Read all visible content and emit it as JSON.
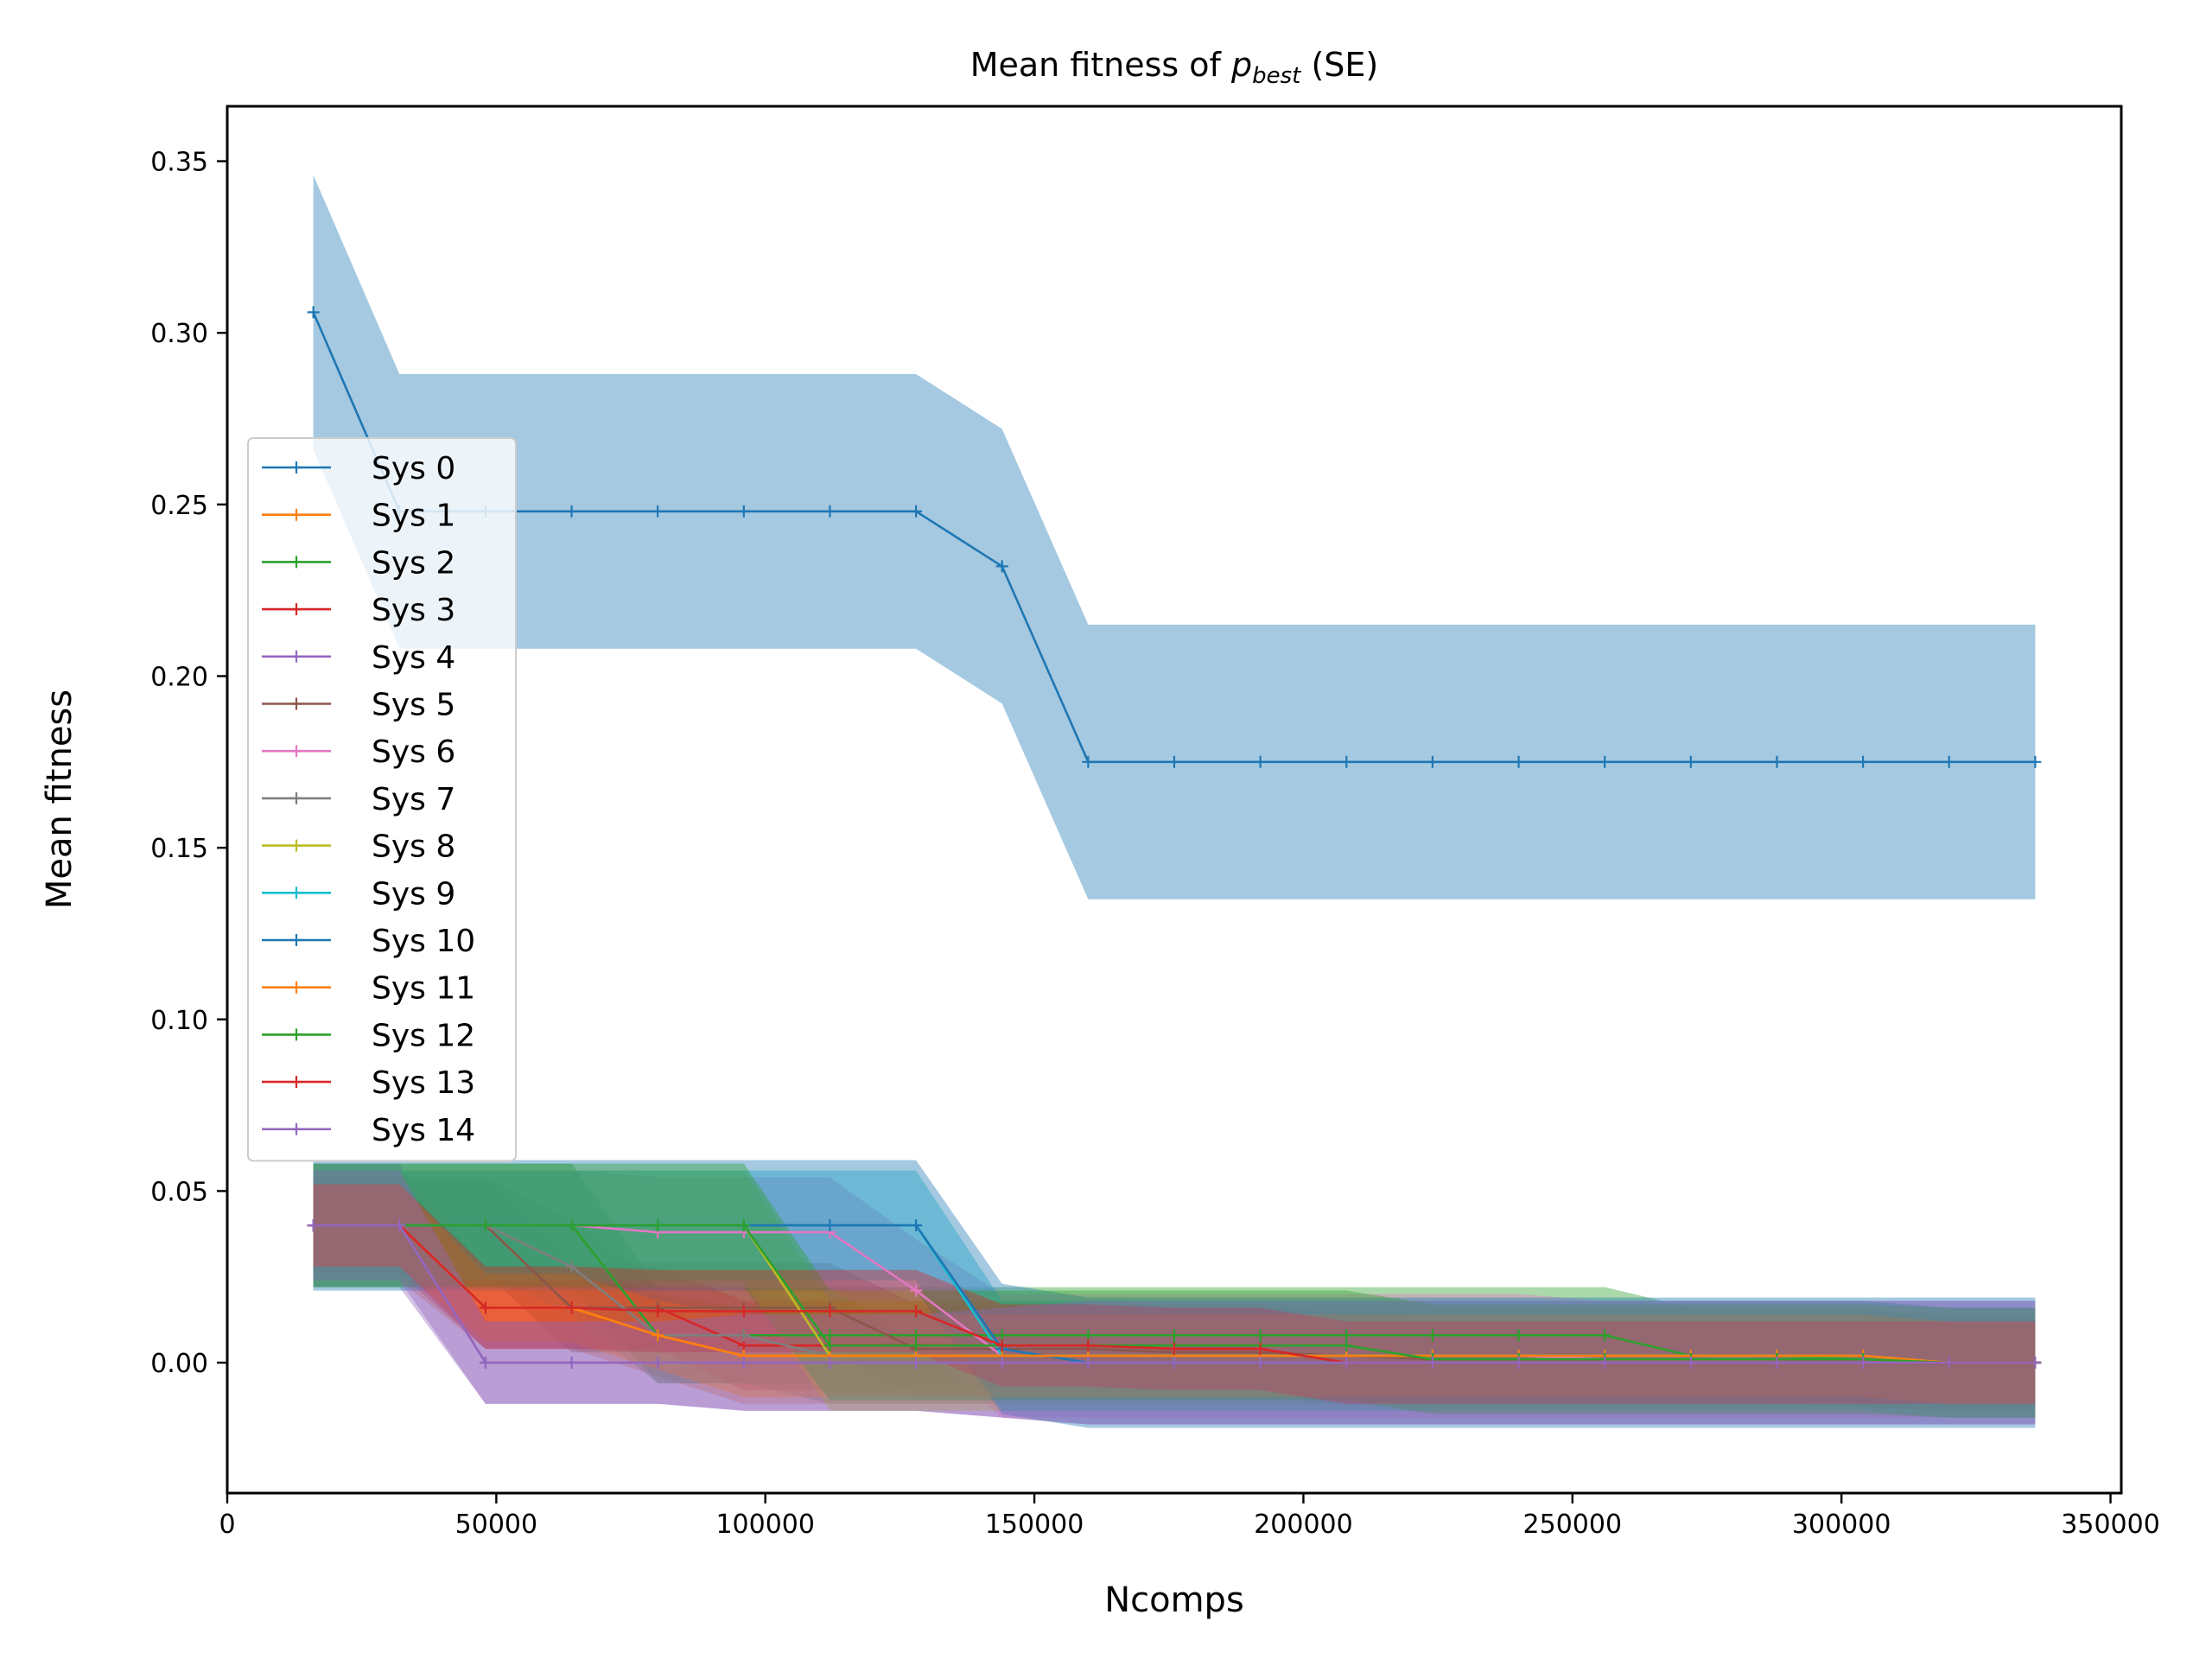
{
  "chart_data": {
    "type": "line",
    "title_prefix": "Mean fitness of ",
    "title_var": "p",
    "title_sub": "best",
    "title_suffix": " (SE)",
    "xlabel": "Ncomps",
    "ylabel": "Mean fitness",
    "xlim": [
      0,
      352000
    ],
    "ylim": [
      -0.038,
      0.366
    ],
    "xticks": [
      0,
      50000,
      100000,
      150000,
      200000,
      250000,
      300000,
      350000
    ],
    "yticks": [
      0.0,
      0.05,
      0.1,
      0.15,
      0.2,
      0.25,
      0.3,
      0.35
    ],
    "ytick_labels": [
      "0.00",
      "0.05",
      "0.10",
      "0.15",
      "0.20",
      "0.25",
      "0.30",
      "0.35"
    ],
    "grid": false,
    "legend_position": "center-left",
    "x": [
      16000,
      32000,
      48000,
      64000,
      80000,
      96000,
      112000,
      128000,
      144000,
      160000,
      176000,
      192000,
      208000,
      224000,
      240000,
      256000,
      272000,
      288000,
      304000,
      320000,
      336000
    ],
    "series": [
      {
        "name": "Sys 0",
        "color": "#1f77b4",
        "values": [
          0.306,
          0.248,
          0.248,
          0.248,
          0.248,
          0.248,
          0.248,
          0.248,
          0.232,
          0.175,
          0.175,
          0.175,
          0.175,
          0.175,
          0.175,
          0.175,
          0.175,
          0.175,
          0.175,
          0.175,
          0.175
        ],
        "lower": [
          0.266,
          0.208,
          0.208,
          0.208,
          0.208,
          0.208,
          0.208,
          0.208,
          0.192,
          0.135,
          0.135,
          0.135,
          0.135,
          0.135,
          0.135,
          0.135,
          0.135,
          0.135,
          0.135,
          0.135,
          0.135
        ],
        "upper": [
          0.346,
          0.288,
          0.288,
          0.288,
          0.288,
          0.288,
          0.288,
          0.288,
          0.272,
          0.215,
          0.215,
          0.215,
          0.215,
          0.215,
          0.215,
          0.215,
          0.215,
          0.215,
          0.215,
          0.215,
          0.215
        ]
      },
      {
        "name": "Sys 1",
        "color": "#ff7f0e",
        "values": [
          0.04,
          0.04,
          0.016,
          0.016,
          0.008,
          0.002,
          0.002,
          0.002,
          0.002,
          0.002,
          0.002,
          0.002,
          0.002,
          0.002,
          0.002,
          0.002,
          0.002,
          0.002,
          0.002,
          0.0,
          0.0
        ],
        "lower": [
          0.024,
          0.024,
          0.004,
          0.004,
          -0.004,
          -0.012,
          -0.012,
          -0.012,
          -0.012,
          -0.012,
          -0.012,
          -0.012,
          -0.012,
          -0.012,
          -0.012,
          -0.012,
          -0.012,
          -0.012,
          -0.012,
          -0.014,
          -0.014
        ],
        "upper": [
          0.056,
          0.056,
          0.028,
          0.028,
          0.02,
          0.016,
          0.016,
          0.016,
          0.016,
          0.016,
          0.016,
          0.016,
          0.016,
          0.016,
          0.016,
          0.016,
          0.016,
          0.016,
          0.016,
          0.014,
          0.014
        ]
      },
      {
        "name": "Sys 2",
        "color": "#2ca02c",
        "values": [
          0.04,
          0.04,
          0.04,
          0.04,
          0.008,
          0.008,
          0.008,
          0.008,
          0.008,
          0.008,
          0.008,
          0.008,
          0.008,
          0.008,
          0.008,
          0.008,
          0.002,
          0.002,
          0.001,
          0.0,
          0.0
        ],
        "lower": [
          0.022,
          0.022,
          0.022,
          0.022,
          -0.006,
          -0.006,
          -0.006,
          -0.006,
          -0.006,
          -0.006,
          -0.006,
          -0.006,
          -0.006,
          -0.006,
          -0.006,
          -0.006,
          -0.012,
          -0.012,
          -0.013,
          -0.014,
          -0.014
        ],
        "upper": [
          0.058,
          0.058,
          0.058,
          0.058,
          0.022,
          0.022,
          0.022,
          0.022,
          0.022,
          0.022,
          0.022,
          0.022,
          0.022,
          0.022,
          0.022,
          0.022,
          0.016,
          0.016,
          0.015,
          0.014,
          0.014
        ]
      },
      {
        "name": "Sys 3",
        "color": "#d62728",
        "values": [
          0.04,
          0.04,
          0.016,
          0.016,
          0.016,
          0.005,
          0.005,
          0.005,
          0.005,
          0.005,
          0.004,
          0.004,
          0.0,
          0.0,
          0.0,
          0.0,
          0.0,
          0.0,
          0.0,
          0.0,
          0.0
        ],
        "lower": [
          0.026,
          0.026,
          0.004,
          0.004,
          0.004,
          -0.008,
          -0.008,
          -0.008,
          -0.008,
          -0.008,
          -0.009,
          -0.009,
          -0.013,
          -0.013,
          -0.013,
          -0.013,
          -0.013,
          -0.013,
          -0.013,
          -0.013,
          -0.013
        ],
        "upper": [
          0.054,
          0.054,
          0.028,
          0.028,
          0.028,
          0.018,
          0.018,
          0.018,
          0.018,
          0.018,
          0.017,
          0.017,
          0.013,
          0.013,
          0.013,
          0.013,
          0.013,
          0.013,
          0.013,
          0.013,
          0.013
        ]
      },
      {
        "name": "Sys 4",
        "color": "#9467bd",
        "values": [
          0.04,
          0.04,
          0.0,
          0.0,
          0.0,
          0.0,
          0.0,
          0.0,
          0.0,
          0.0,
          0.0,
          0.0,
          0.0,
          0.0,
          0.0,
          0.0,
          0.0,
          0.0,
          0.0,
          0.0,
          0.0
        ],
        "lower": [
          0.022,
          0.022,
          -0.012,
          -0.012,
          -0.012,
          -0.014,
          -0.014,
          -0.014,
          -0.016,
          -0.018,
          -0.018,
          -0.018,
          -0.018,
          -0.018,
          -0.018,
          -0.018,
          -0.018,
          -0.018,
          -0.018,
          -0.018,
          -0.018
        ],
        "upper": [
          0.058,
          0.058,
          0.012,
          0.012,
          0.012,
          0.014,
          0.014,
          0.014,
          0.016,
          0.018,
          0.018,
          0.018,
          0.018,
          0.018,
          0.018,
          0.018,
          0.018,
          0.018,
          0.018,
          0.018,
          0.018
        ]
      },
      {
        "name": "Sys 5",
        "color": "#8c564b",
        "values": [
          0.04,
          0.04,
          0.04,
          0.016,
          0.016,
          0.016,
          0.016,
          0.004,
          0.004,
          0.004,
          0.003,
          0.003,
          0.002,
          0.001,
          0.001,
          0.001,
          0.001,
          0.001,
          0.001,
          0.0,
          0.0
        ],
        "lower": [
          0.026,
          0.026,
          0.026,
          0.003,
          0.003,
          0.003,
          0.003,
          -0.009,
          -0.009,
          -0.009,
          -0.01,
          -0.01,
          -0.011,
          -0.012,
          -0.012,
          -0.012,
          -0.012,
          -0.012,
          -0.012,
          -0.013,
          -0.013
        ],
        "upper": [
          0.054,
          0.054,
          0.054,
          0.029,
          0.029,
          0.029,
          0.029,
          0.017,
          0.017,
          0.017,
          0.016,
          0.016,
          0.015,
          0.014,
          0.014,
          0.014,
          0.014,
          0.014,
          0.014,
          0.013,
          0.013
        ]
      },
      {
        "name": "Sys 6",
        "color": "#e377c2",
        "values": [
          0.04,
          0.04,
          0.04,
          0.04,
          0.038,
          0.038,
          0.038,
          0.021,
          0.002,
          0.002,
          0.002,
          0.002,
          0.002,
          0.002,
          0.002,
          0.001,
          0.001,
          0.001,
          0.001,
          0.0,
          0.0
        ],
        "lower": [
          0.024,
          0.024,
          0.024,
          0.024,
          0.022,
          0.022,
          0.022,
          0.006,
          -0.016,
          -0.016,
          -0.016,
          -0.016,
          -0.016,
          -0.016,
          -0.016,
          -0.016,
          -0.016,
          -0.016,
          -0.016,
          -0.016,
          -0.016
        ],
        "upper": [
          0.056,
          0.056,
          0.056,
          0.056,
          0.054,
          0.054,
          0.054,
          0.036,
          0.02,
          0.02,
          0.02,
          0.02,
          0.02,
          0.02,
          0.02,
          0.018,
          0.018,
          0.018,
          0.018,
          0.016,
          0.016
        ]
      },
      {
        "name": "Sys 7",
        "color": "#7f7f7f",
        "values": [
          0.04,
          0.04,
          0.04,
          0.028,
          0.008,
          0.008,
          0.002,
          0.002,
          0.002,
          0.002,
          0.002,
          0.002,
          0.002,
          0.002,
          0.002,
          0.002,
          0.002,
          0.001,
          0.001,
          0.0,
          0.0
        ],
        "lower": [
          0.026,
          0.026,
          0.026,
          0.014,
          -0.006,
          -0.006,
          -0.012,
          -0.012,
          -0.012,
          -0.012,
          -0.012,
          -0.012,
          -0.012,
          -0.012,
          -0.012,
          -0.012,
          -0.012,
          -0.013,
          -0.013,
          -0.014,
          -0.014
        ],
        "upper": [
          0.054,
          0.054,
          0.054,
          0.042,
          0.022,
          0.022,
          0.016,
          0.016,
          0.016,
          0.016,
          0.016,
          0.016,
          0.016,
          0.016,
          0.016,
          0.016,
          0.016,
          0.015,
          0.015,
          0.014,
          0.014
        ]
      },
      {
        "name": "Sys 8",
        "color": "#bcbd22",
        "values": [
          0.04,
          0.04,
          0.04,
          0.04,
          0.04,
          0.04,
          0.002,
          0.002,
          0.002,
          0.002,
          0.002,
          0.002,
          0.002,
          0.002,
          0.002,
          0.002,
          0.002,
          0.002,
          0.002,
          0.0,
          0.0
        ],
        "lower": [
          0.024,
          0.024,
          0.024,
          0.024,
          0.024,
          0.024,
          -0.014,
          -0.014,
          -0.014,
          -0.014,
          -0.014,
          -0.014,
          -0.014,
          -0.014,
          -0.014,
          -0.014,
          -0.014,
          -0.014,
          -0.014,
          -0.016,
          -0.016
        ],
        "upper": [
          0.056,
          0.056,
          0.056,
          0.056,
          0.056,
          0.056,
          0.018,
          0.018,
          0.018,
          0.018,
          0.018,
          0.018,
          0.018,
          0.018,
          0.018,
          0.018,
          0.018,
          0.018,
          0.018,
          0.016,
          0.016
        ]
      },
      {
        "name": "Sys 9",
        "color": "#17becf",
        "values": [
          0.04,
          0.04,
          0.04,
          0.04,
          0.04,
          0.04,
          0.04,
          0.04,
          0.002,
          0.002,
          0.002,
          0.002,
          0.002,
          0.002,
          0.002,
          0.002,
          0.002,
          0.002,
          0.002,
          0.0,
          0.0
        ],
        "lower": [
          0.024,
          0.024,
          0.024,
          0.024,
          0.024,
          0.024,
          0.024,
          0.024,
          -0.014,
          -0.014,
          -0.014,
          -0.014,
          -0.014,
          -0.014,
          -0.014,
          -0.014,
          -0.014,
          -0.014,
          -0.014,
          -0.016,
          -0.016
        ],
        "upper": [
          0.056,
          0.056,
          0.056,
          0.056,
          0.056,
          0.056,
          0.056,
          0.056,
          0.018,
          0.018,
          0.018,
          0.018,
          0.018,
          0.018,
          0.018,
          0.018,
          0.018,
          0.018,
          0.018,
          0.016,
          0.016
        ]
      },
      {
        "name": "Sys 10",
        "color": "#1f77b4",
        "values": [
          0.04,
          0.04,
          0.04,
          0.04,
          0.04,
          0.04,
          0.04,
          0.04,
          0.004,
          0.0,
          0.0,
          0.0,
          0.0,
          0.0,
          0.0,
          0.0,
          0.0,
          0.0,
          0.0,
          0.0,
          0.0
        ],
        "lower": [
          0.021,
          0.021,
          0.021,
          0.021,
          0.021,
          0.021,
          0.021,
          0.021,
          -0.015,
          -0.019,
          -0.019,
          -0.019,
          -0.019,
          -0.019,
          -0.019,
          -0.019,
          -0.019,
          -0.019,
          -0.019,
          -0.019,
          -0.019
        ],
        "upper": [
          0.059,
          0.059,
          0.059,
          0.059,
          0.059,
          0.059,
          0.059,
          0.059,
          0.023,
          0.019,
          0.019,
          0.019,
          0.019,
          0.019,
          0.019,
          0.019,
          0.019,
          0.019,
          0.019,
          0.019,
          0.019
        ]
      },
      {
        "name": "Sys 11",
        "color": "#ff7f0e",
        "values": [
          0.04,
          0.04,
          0.016,
          0.016,
          0.008,
          0.002,
          0.002,
          0.002,
          0.002,
          0.002,
          0.002,
          0.002,
          0.002,
          0.002,
          0.002,
          0.002,
          0.002,
          0.002,
          0.002,
          0.0,
          0.0
        ],
        "lower": [
          0.028,
          0.028,
          0.006,
          0.006,
          -0.002,
          -0.01,
          -0.01,
          -0.01,
          -0.01,
          -0.01,
          -0.01,
          -0.01,
          -0.01,
          -0.01,
          -0.01,
          -0.01,
          -0.01,
          -0.01,
          -0.01,
          -0.012,
          -0.012
        ],
        "upper": [
          0.052,
          0.052,
          0.026,
          0.026,
          0.018,
          0.014,
          0.014,
          0.014,
          0.014,
          0.014,
          0.014,
          0.014,
          0.014,
          0.014,
          0.014,
          0.014,
          0.014,
          0.014,
          0.014,
          0.012,
          0.012
        ]
      },
      {
        "name": "Sys 12",
        "color": "#2ca02c",
        "values": [
          0.04,
          0.04,
          0.04,
          0.04,
          0.04,
          0.04,
          0.005,
          0.005,
          0.005,
          0.005,
          0.005,
          0.005,
          0.005,
          0.001,
          0.001,
          0.001,
          0.001,
          0.001,
          0.001,
          0.0,
          0.0
        ],
        "lower": [
          0.022,
          0.022,
          0.022,
          0.022,
          0.022,
          0.022,
          -0.011,
          -0.011,
          -0.011,
          -0.011,
          -0.011,
          -0.011,
          -0.011,
          -0.015,
          -0.015,
          -0.015,
          -0.015,
          -0.015,
          -0.015,
          -0.016,
          -0.016
        ],
        "upper": [
          0.058,
          0.058,
          0.058,
          0.058,
          0.058,
          0.058,
          0.021,
          0.021,
          0.021,
          0.021,
          0.021,
          0.021,
          0.021,
          0.017,
          0.017,
          0.017,
          0.017,
          0.017,
          0.017,
          0.016,
          0.016
        ]
      },
      {
        "name": "Sys 13",
        "color": "#d62728",
        "values": [
          0.04,
          0.04,
          0.016,
          0.016,
          0.015,
          0.015,
          0.015,
          0.015,
          0.005,
          0.005,
          0.004,
          0.004,
          0.0,
          0.0,
          0.0,
          0.0,
          0.0,
          0.0,
          0.0,
          0.0,
          0.0
        ],
        "lower": [
          0.028,
          0.028,
          0.004,
          0.004,
          0.003,
          0.003,
          0.003,
          0.003,
          -0.007,
          -0.007,
          -0.008,
          -0.008,
          -0.012,
          -0.012,
          -0.012,
          -0.012,
          -0.012,
          -0.012,
          -0.012,
          -0.012,
          -0.012
        ],
        "upper": [
          0.052,
          0.052,
          0.028,
          0.028,
          0.027,
          0.027,
          0.027,
          0.027,
          0.017,
          0.017,
          0.016,
          0.016,
          0.012,
          0.012,
          0.012,
          0.012,
          0.012,
          0.012,
          0.012,
          0.012,
          0.012
        ]
      },
      {
        "name": "Sys 14",
        "color": "#9467bd",
        "values": [
          0.04,
          0.04,
          0.0,
          0.0,
          0.0,
          0.0,
          0.0,
          0.0,
          0.0,
          0.0,
          0.0,
          0.0,
          0.0,
          0.0,
          0.0,
          0.0,
          0.0,
          0.0,
          0.0,
          0.0,
          0.0
        ],
        "lower": [
          0.024,
          0.024,
          -0.012,
          -0.012,
          -0.012,
          -0.014,
          -0.014,
          -0.014,
          -0.016,
          -0.018,
          -0.018,
          -0.018,
          -0.018,
          -0.018,
          -0.018,
          -0.018,
          -0.018,
          -0.018,
          -0.018,
          -0.018,
          -0.018
        ],
        "upper": [
          0.056,
          0.056,
          0.012,
          0.012,
          0.012,
          0.014,
          0.014,
          0.014,
          0.016,
          0.018,
          0.018,
          0.018,
          0.018,
          0.018,
          0.018,
          0.018,
          0.018,
          0.018,
          0.018,
          0.018,
          0.018
        ]
      }
    ]
  }
}
